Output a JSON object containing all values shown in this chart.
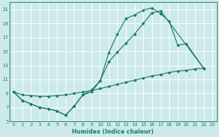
{
  "xlabel": "Humidex (Indice chaleur)",
  "bg_color": "#cdeaea",
  "grid_color": "#ffffff",
  "line_color": "#1a7a6e",
  "xlim": [
    -0.5,
    23.5
  ],
  "ylim": [
    5,
    22
  ],
  "xticks": [
    0,
    1,
    2,
    3,
    4,
    5,
    6,
    7,
    8,
    9,
    10,
    11,
    12,
    13,
    14,
    15,
    16,
    17,
    18,
    19,
    20,
    21,
    22,
    23
  ],
  "yticks": [
    5,
    7,
    9,
    11,
    13,
    15,
    17,
    19,
    21
  ],
  "curve1_x": [
    0,
    1,
    2,
    3,
    4,
    5,
    6,
    7,
    8,
    9,
    10,
    11,
    12,
    13,
    14,
    15,
    16,
    17,
    18,
    19,
    20,
    22
  ],
  "curve1_y": [
    9.2,
    8.0,
    7.5,
    7.0,
    6.8,
    6.5,
    5.9,
    7.2,
    8.8,
    9.2,
    10.8,
    14.8,
    17.5,
    19.7,
    20.2,
    20.9,
    21.2,
    20.4,
    19.3,
    15.9,
    16.1,
    12.6
  ],
  "curve2_x": [
    0,
    1,
    2,
    3,
    4,
    5,
    6,
    7,
    8,
    9,
    10,
    11,
    12,
    13,
    14,
    15,
    16,
    17,
    22
  ],
  "curve2_y": [
    9.2,
    8.0,
    7.5,
    7.0,
    6.8,
    6.5,
    5.9,
    7.2,
    8.8,
    9.5,
    10.8,
    13.5,
    14.9,
    16.2,
    17.5,
    19.0,
    20.5,
    20.8,
    12.6
  ],
  "curve3_x": [
    0,
    1,
    2,
    3,
    4,
    5,
    6,
    7,
    8,
    9,
    10,
    11,
    12,
    13,
    14,
    15,
    16,
    17,
    18,
    19,
    20,
    21,
    22
  ],
  "curve3_y": [
    9.2,
    8.8,
    8.7,
    8.6,
    8.6,
    8.7,
    8.8,
    9.0,
    9.2,
    9.4,
    9.7,
    10.0,
    10.3,
    10.6,
    10.9,
    11.2,
    11.5,
    11.7,
    12.0,
    12.2,
    12.3,
    12.5,
    12.6
  ]
}
